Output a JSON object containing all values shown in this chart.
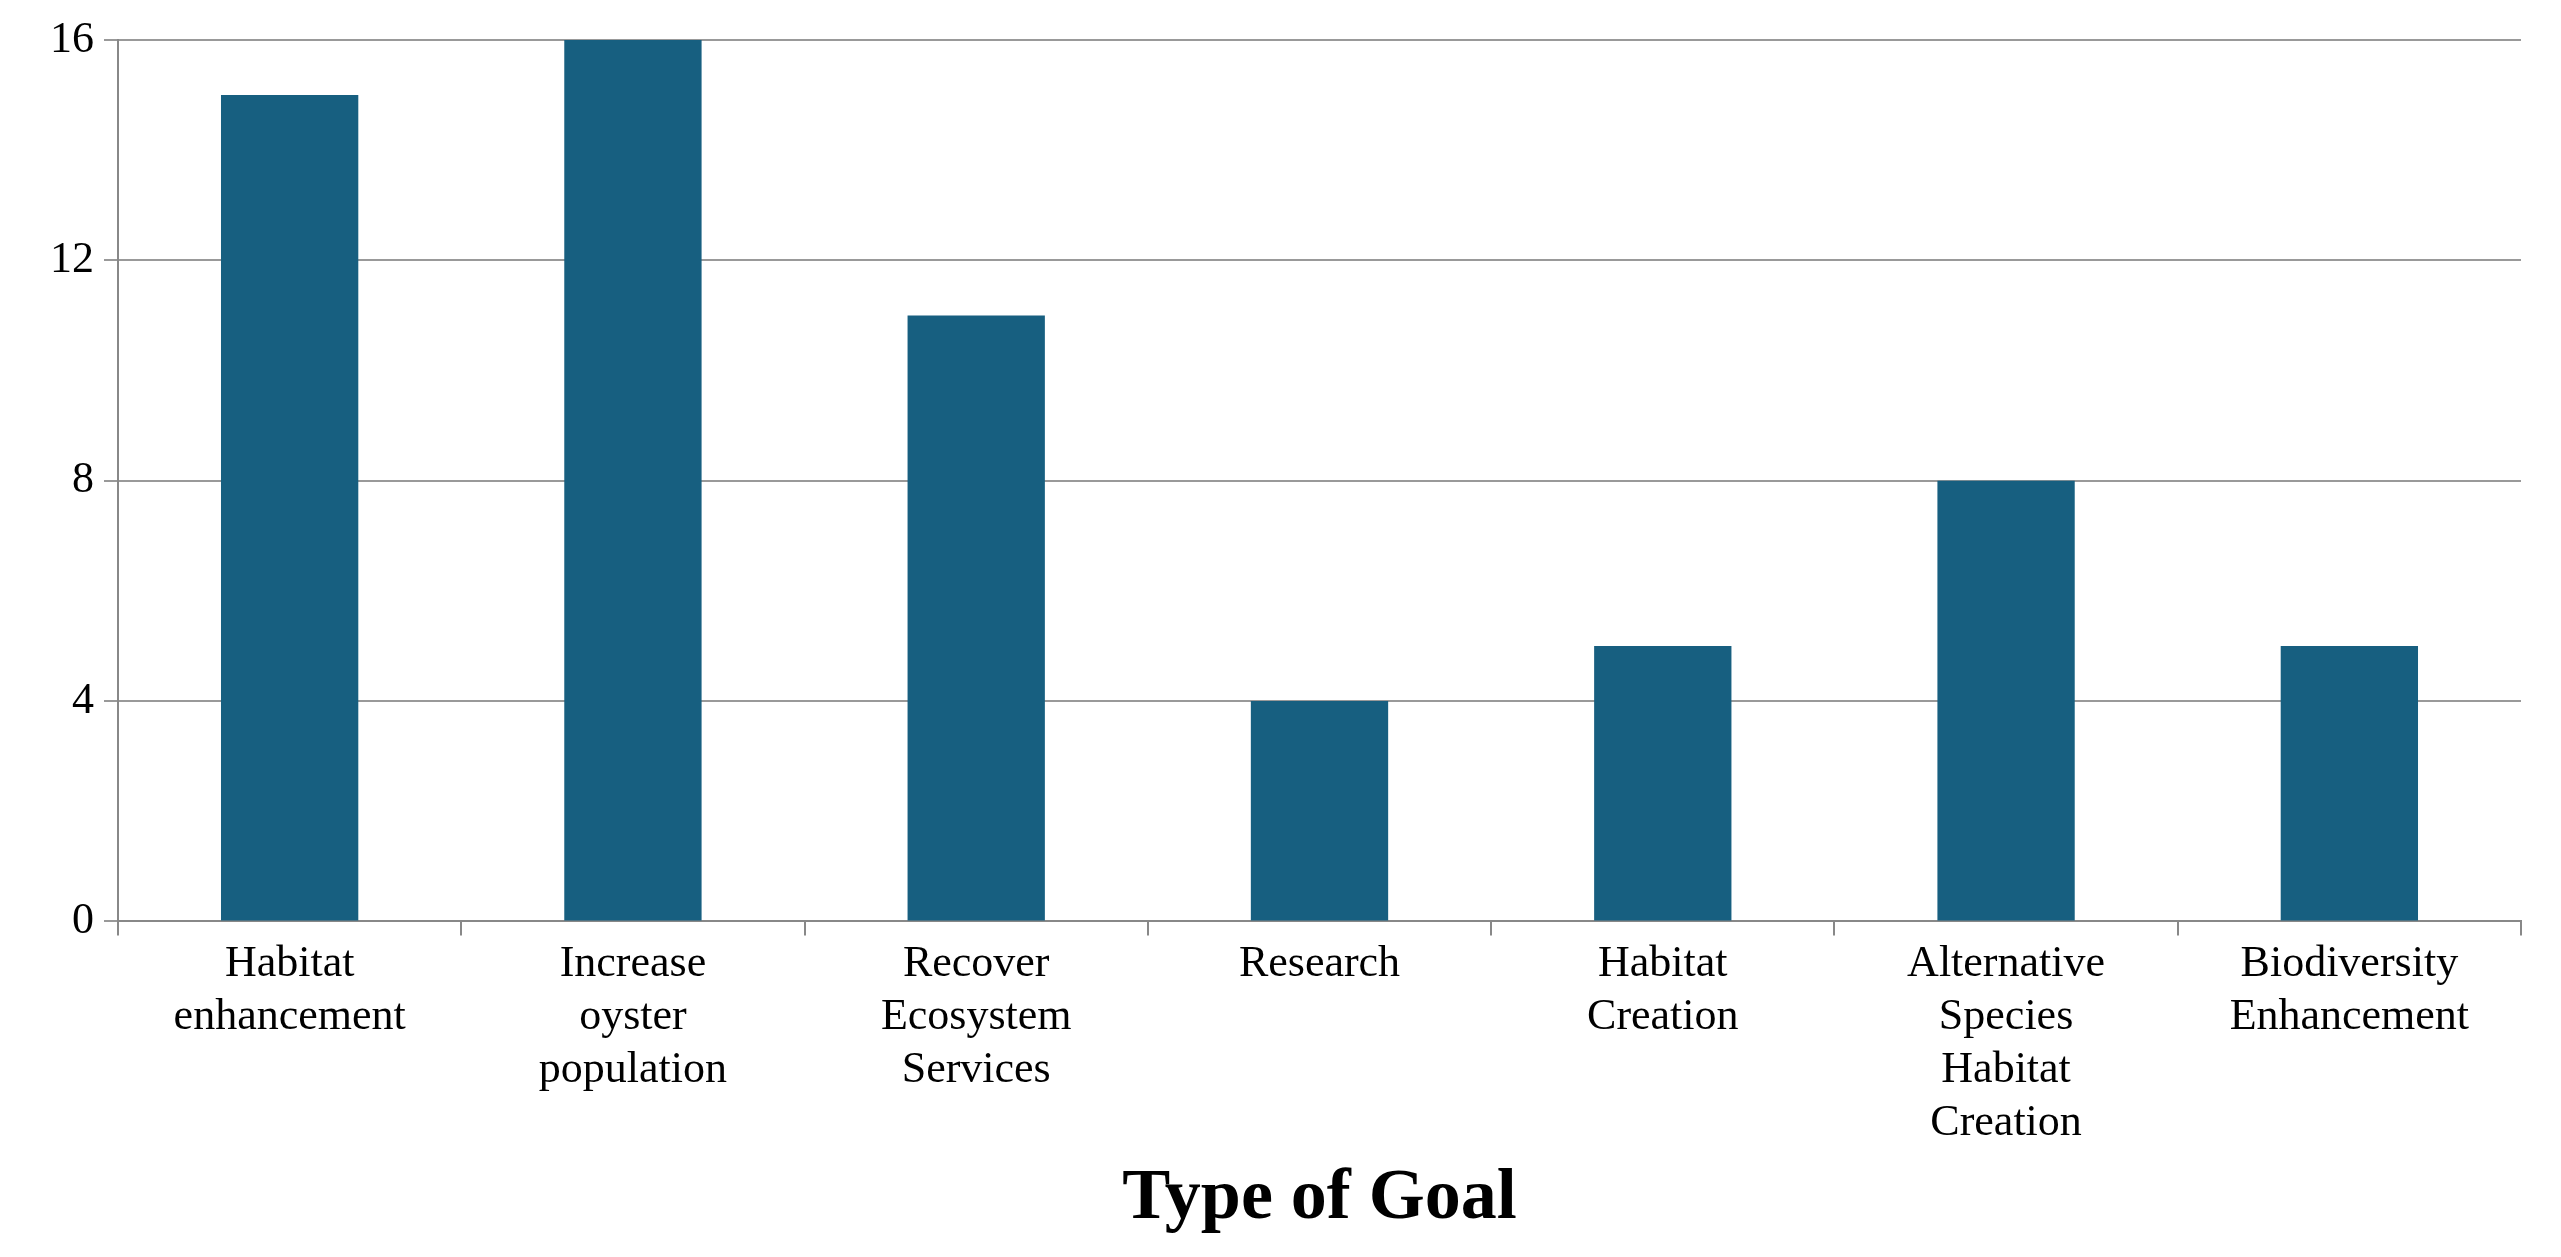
{
  "chart_data": {
    "type": "bar",
    "xlabel": "Type of Goal",
    "categories": [
      "Habitat enhancement",
      "Increase oyster population",
      "Recover Ecosystem Services",
      "Research",
      "Habitat Creation",
      "Alternative Species Habitat Creation",
      "Biodiversity Enhancement"
    ],
    "values": [
      15,
      16,
      11,
      4,
      5,
      8,
      5
    ],
    "color": "#175f80",
    "ylim": [
      0,
      16
    ],
    "yticks": [
      0,
      4,
      8,
      12,
      16
    ],
    "grid": "y",
    "legend": false
  }
}
